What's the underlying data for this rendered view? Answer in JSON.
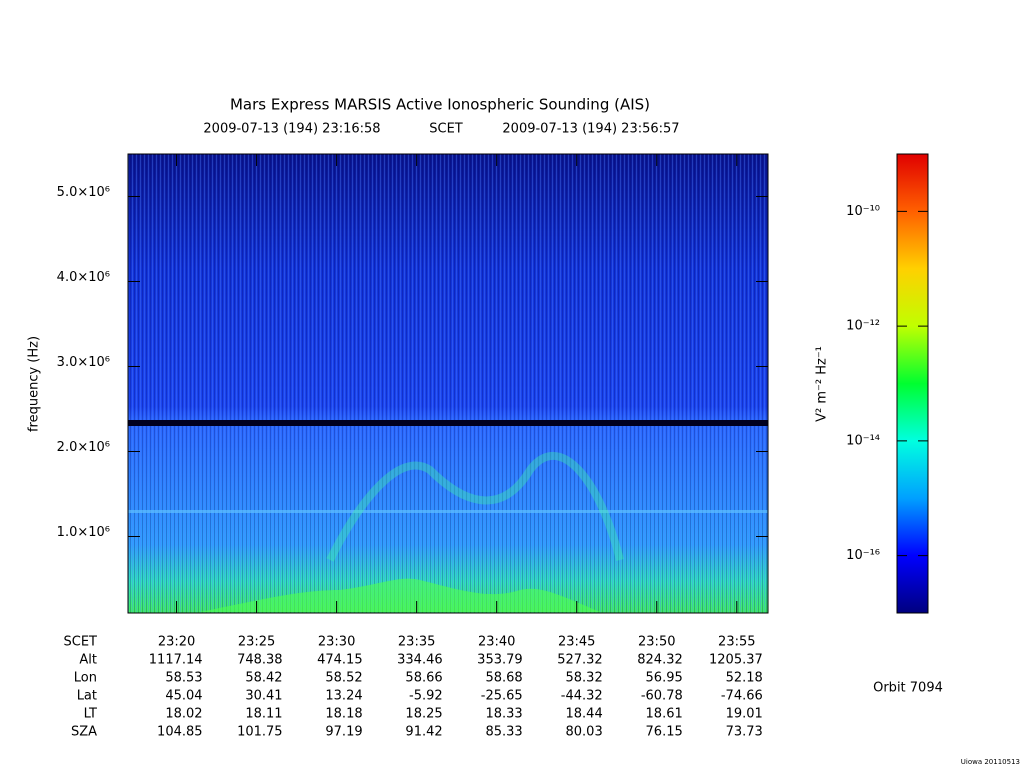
{
  "chart_data": {
    "type": "spectrogram",
    "title": "Mars Express MARSIS Active Ionospheric Sounding (AIS)",
    "start": "2009-07-13 (194) 23:16:58",
    "frame": "SCET",
    "end": "2009-07-13 (194) 23:56:57",
    "ylabel": "frequency (Hz)",
    "ylim": [
      100000,
      5500000
    ],
    "yticks": [
      {
        "value": 1000000,
        "label": "1.0×10⁶"
      },
      {
        "value": 2000000,
        "label": "2.0×10⁶"
      },
      {
        "value": 3000000,
        "label": "3.0×10⁶"
      },
      {
        "value": 4000000,
        "label": "4.0×10⁶"
      },
      {
        "value": 5000000,
        "label": "5.0×10⁶"
      }
    ],
    "xticks": [
      "23:20",
      "23:25",
      "23:30",
      "23:35",
      "23:40",
      "23:45",
      "23:50",
      "23:55"
    ],
    "ephemeris": [
      {
        "name": "Alt",
        "values": [
          1117.14,
          748.38,
          474.15,
          334.46,
          353.79,
          527.32,
          824.32,
          1205.37
        ]
      },
      {
        "name": "Lon",
        "values": [
          58.53,
          58.42,
          58.52,
          58.66,
          58.68,
          58.32,
          56.95,
          52.18
        ]
      },
      {
        "name": "Lat",
        "values": [
          45.04,
          30.41,
          13.24,
          -5.92,
          -25.65,
          -44.32,
          -60.78,
          -74.66
        ]
      },
      {
        "name": "LT",
        "values": [
          18.02,
          18.11,
          18.18,
          18.25,
          18.33,
          18.44,
          18.61,
          19.01
        ]
      },
      {
        "name": "SZA",
        "values": [
          104.85,
          101.75,
          97.19,
          91.42,
          85.33,
          80.03,
          76.15,
          73.73
        ]
      }
    ],
    "colorbar": {
      "label": "V² m⁻² Hz⁻¹",
      "log": true,
      "clim": [
        1e-17,
        1e-09
      ],
      "ticks": [
        {
          "value": 1e-10,
          "label": "10⁻¹⁰"
        },
        {
          "value": 1e-12,
          "label": "10⁻¹²"
        },
        {
          "value": 1e-14,
          "label": "10⁻¹⁴"
        },
        {
          "value": 1e-16,
          "label": "10⁻¹⁶"
        }
      ],
      "colormap": [
        "#00007f",
        "#0000ff",
        "#00a0ff",
        "#00ffe0",
        "#00ff30",
        "#c0ff00",
        "#ffd000",
        "#ff6000",
        "#e00000"
      ]
    },
    "orbit": "Orbit 7094",
    "credit": "Uiowa 20110513"
  }
}
